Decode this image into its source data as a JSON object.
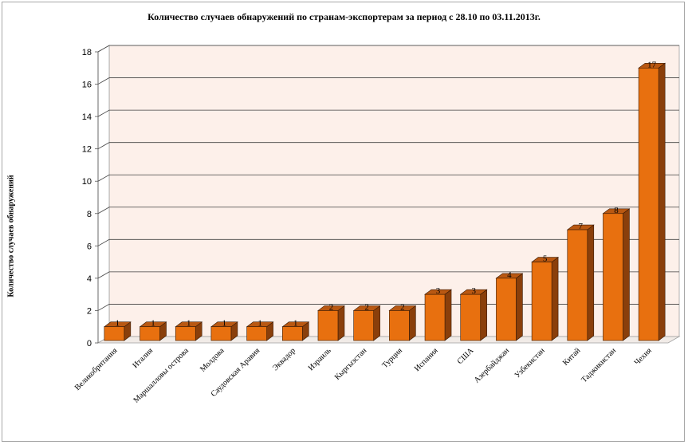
{
  "chart_data": {
    "type": "bar",
    "title": "Количество случаев обнаружений по странам-экспортерам за период с 28.10 по 03.11.2013г.",
    "xlabel": "",
    "ylabel": "Количество случаев обнаружений",
    "ylim": [
      0,
      18
    ],
    "yticks": [
      "0",
      "2",
      "4",
      "6",
      "8",
      "10",
      "12",
      "14",
      "16",
      "18"
    ],
    "grid": true,
    "legend": "none",
    "categories": [
      "Великобритания",
      "Италия",
      "Маршалловы острова",
      "Молдова",
      "Саудовская Аравия",
      "Эквадор",
      "Израиль",
      "Кыргызстан",
      "Турция",
      "Испания",
      "США",
      "Азербайджан",
      "Узбекистан",
      "Китай",
      "Таджикистан",
      "Чехия"
    ],
    "values": [
      1,
      1,
      1,
      1,
      1,
      1,
      2,
      2,
      2,
      3,
      3,
      4,
      5,
      7,
      8,
      17
    ],
    "data_labels": [
      "1",
      "1",
      "1",
      "1",
      "1",
      "1",
      "2",
      "2",
      "2",
      "3",
      "3",
      "4",
      "5",
      "7",
      "8",
      "17"
    ]
  },
  "colors": {
    "bar_front": "#e8700f",
    "bar_side": "#8a3f0b",
    "bar_top": "#b95812",
    "wall": "#fdf0ea",
    "floor": "#f1ebe7",
    "gridline": "#404040"
  }
}
